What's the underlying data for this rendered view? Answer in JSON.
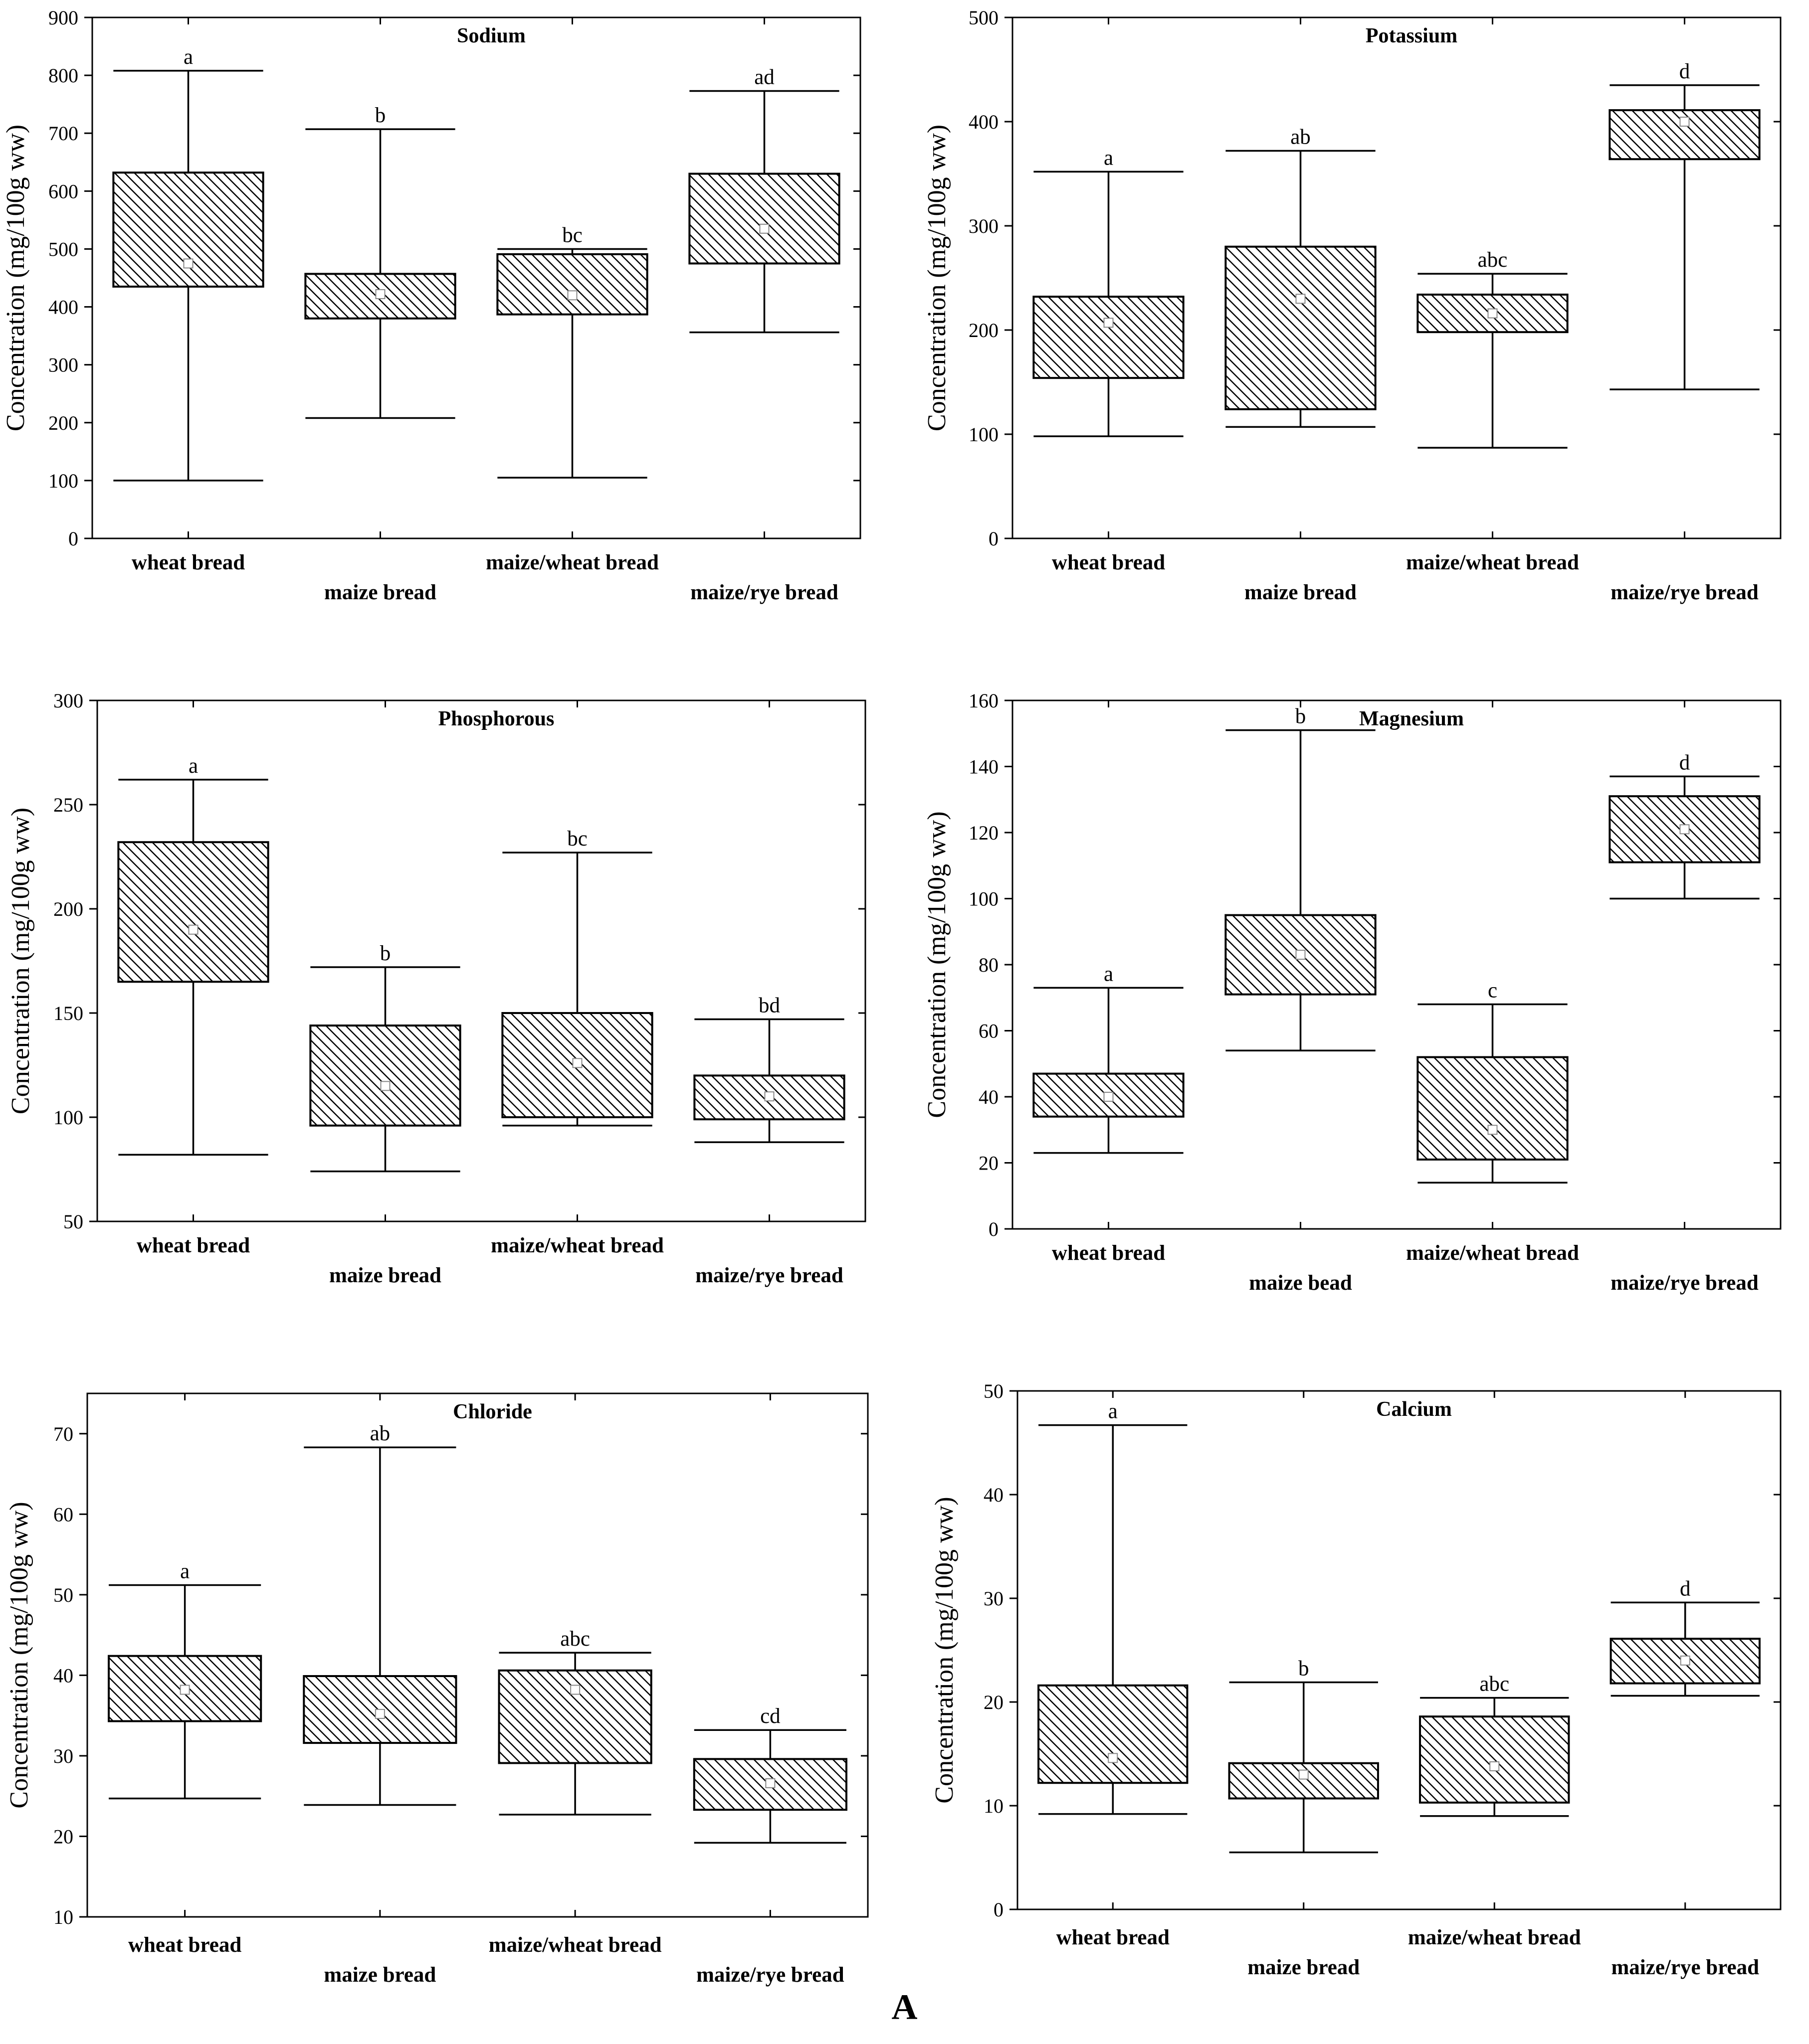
{
  "figure_label": "A",
  "colors": {
    "line": "#000000",
    "hatch": "#000000",
    "box_fill": "#ffffff",
    "median": "#ffffff"
  },
  "chart_data": [
    {
      "type": "boxplot",
      "title": "Sodium",
      "ylabel": "Concentration (mg/100g ww)",
      "ylim": [
        0,
        900
      ],
      "yticks": [
        0,
        100,
        200,
        300,
        400,
        500,
        600,
        700,
        800,
        900
      ],
      "categories": [
        "wheat bread",
        "maize bread",
        "maize/wheat bread",
        "maize/rye bread"
      ],
      "boxes": [
        {
          "min": 100,
          "q1": 435,
          "median": 475,
          "q3": 632,
          "max": 808,
          "letter": "a"
        },
        {
          "min": 208,
          "q1": 380,
          "median": 422,
          "q3": 457,
          "max": 707,
          "letter": "b"
        },
        {
          "min": 105,
          "q1": 387,
          "median": 420,
          "q3": 491,
          "max": 500,
          "letter": "bc"
        },
        {
          "min": 356,
          "q1": 475,
          "median": 535,
          "q3": 630,
          "max": 773,
          "letter": "ad"
        }
      ]
    },
    {
      "type": "boxplot",
      "title": "Potassium",
      "ylabel": "Concentration (mg/100g ww)",
      "ylim": [
        0,
        500
      ],
      "yticks": [
        0,
        100,
        200,
        300,
        400,
        500
      ],
      "categories": [
        "wheat bread",
        "maize bread",
        "maize/wheat bread",
        "maize/rye bread"
      ],
      "boxes": [
        {
          "min": 98,
          "q1": 154,
          "median": 207,
          "q3": 232,
          "max": 352,
          "letter": "a"
        },
        {
          "min": 107,
          "q1": 124,
          "median": 230,
          "q3": 280,
          "max": 372,
          "letter": "ab"
        },
        {
          "min": 87,
          "q1": 198,
          "median": 216,
          "q3": 234,
          "max": 254,
          "letter": "abc"
        },
        {
          "min": 143,
          "q1": 364,
          "median": 400,
          "q3": 411,
          "max": 435,
          "letter": "d"
        }
      ]
    },
    {
      "type": "boxplot",
      "title": "Phosphorous",
      "ylabel": "Concentration (mg/100g ww)",
      "ylim": [
        50,
        300
      ],
      "yticks": [
        50,
        100,
        150,
        200,
        250,
        300
      ],
      "categories": [
        "wheat bread",
        "maize bread",
        "maize/wheat bread",
        "maize/rye bread"
      ],
      "boxes": [
        {
          "min": 82,
          "q1": 165,
          "median": 190,
          "q3": 232,
          "max": 262,
          "letter": "a"
        },
        {
          "min": 74,
          "q1": 96,
          "median": 115,
          "q3": 144,
          "max": 172,
          "letter": "b"
        },
        {
          "min": 96,
          "q1": 100,
          "median": 126,
          "q3": 150,
          "max": 227,
          "letter": "bc"
        },
        {
          "min": 88,
          "q1": 99,
          "median": 110,
          "q3": 120,
          "max": 147,
          "letter": "bd"
        }
      ]
    },
    {
      "type": "boxplot",
      "title": "Magnesium",
      "ylabel": "Concentration (mg/100g ww)",
      "ylim": [
        0,
        160
      ],
      "yticks": [
        0,
        20,
        40,
        60,
        80,
        100,
        120,
        140,
        160
      ],
      "categories": [
        "wheat bread",
        "maize bead",
        "maize/wheat bread",
        "maize/rye bread"
      ],
      "boxes": [
        {
          "min": 23,
          "q1": 34,
          "median": 40,
          "q3": 47,
          "max": 73,
          "letter": "a"
        },
        {
          "min": 54,
          "q1": 71,
          "median": 83,
          "q3": 95,
          "max": 151,
          "letter": "b"
        },
        {
          "min": 14,
          "q1": 21,
          "median": 30,
          "q3": 52,
          "max": 68,
          "letter": "c"
        },
        {
          "min": 100,
          "q1": 111,
          "median": 121,
          "q3": 131,
          "max": 137,
          "letter": "d"
        }
      ]
    },
    {
      "type": "boxplot",
      "title": "Chloride",
      "ylabel": "Concentration (mg/100g ww)",
      "ylim": [
        10,
        75
      ],
      "yticks": [
        10,
        20,
        30,
        40,
        50,
        60,
        70
      ],
      "categories": [
        "wheat bread",
        "maize bread",
        "maize/wheat bread",
        "maize/rye bread"
      ],
      "boxes": [
        {
          "min": 24.7,
          "q1": 34.3,
          "median": 38.2,
          "q3": 42.4,
          "max": 51.2,
          "letter": "a"
        },
        {
          "min": 23.9,
          "q1": 31.6,
          "median": 35.2,
          "q3": 39.9,
          "max": 68.3,
          "letter": "ab"
        },
        {
          "min": 22.7,
          "q1": 29.1,
          "median": 38.2,
          "q3": 40.6,
          "max": 42.8,
          "letter": "abc"
        },
        {
          "min": 19.2,
          "q1": 23.3,
          "median": 26.6,
          "q3": 29.6,
          "max": 33.2,
          "letter": "cd"
        }
      ]
    },
    {
      "type": "boxplot",
      "title": "Calcium",
      "ylabel": "Concentration (mg/100g ww)",
      "ylim": [
        0,
        50
      ],
      "yticks": [
        0,
        10,
        20,
        30,
        40,
        50
      ],
      "categories": [
        "wheat bread",
        "maize bread",
        "maize/wheat bread",
        "maize/rye bread"
      ],
      "boxes": [
        {
          "min": 9.2,
          "q1": 12.2,
          "median": 14.6,
          "q3": 21.6,
          "max": 46.7,
          "letter": "a"
        },
        {
          "min": 5.5,
          "q1": 10.7,
          "median": 13.0,
          "q3": 14.1,
          "max": 21.9,
          "letter": "b"
        },
        {
          "min": 9.0,
          "q1": 10.3,
          "median": 13.8,
          "q3": 18.6,
          "max": 20.4,
          "letter": "abc"
        },
        {
          "min": 20.6,
          "q1": 21.8,
          "median": 24.0,
          "q3": 26.1,
          "max": 29.6,
          "letter": "d"
        }
      ]
    }
  ]
}
